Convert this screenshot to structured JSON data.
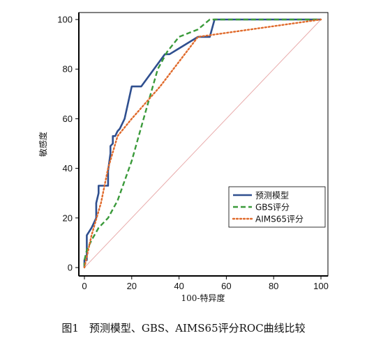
{
  "caption": "图1　预测模型、GBS、AIMS65评分ROC曲线比较",
  "chart_data": {
    "type": "line",
    "xlabel": "100-特异度",
    "ylabel": "敏感度",
    "xlim": [
      0,
      100
    ],
    "ylim": [
      0,
      100
    ],
    "xticks": [
      0,
      20,
      40,
      60,
      80,
      100
    ],
    "yticks": [
      0,
      20,
      40,
      60,
      80,
      100
    ],
    "grid": false,
    "legend_position": "bottom-right",
    "reference_line": {
      "x": [
        0,
        100
      ],
      "y": [
        0,
        100
      ],
      "color": "#e8aaaa"
    },
    "series": [
      {
        "name": "预测模型",
        "color": "#2f4f8f",
        "style": "solid",
        "x": [
          0,
          0,
          1,
          1,
          3,
          5,
          5,
          6,
          6,
          10,
          10,
          11,
          11,
          12,
          12,
          13,
          14,
          15,
          17,
          20,
          20,
          24,
          34,
          35,
          36,
          48,
          53,
          55,
          100
        ],
        "y": [
          0,
          3,
          3,
          13,
          16,
          20,
          26,
          30,
          33,
          33,
          39,
          46,
          49,
          50,
          53,
          53,
          55,
          56,
          60,
          73,
          73,
          73,
          86,
          86,
          86,
          93,
          93,
          100,
          100
        ]
      },
      {
        "name": "GBS评分",
        "color": "#3a9a3a",
        "style": "dashed",
        "x": [
          0,
          0,
          1,
          3,
          6,
          10,
          14,
          20,
          25,
          31,
          35,
          40,
          48,
          53,
          100
        ],
        "y": [
          0,
          3,
          7,
          11,
          16,
          20,
          27,
          43,
          60,
          80,
          87,
          93,
          96,
          100,
          100
        ]
      },
      {
        "name": "AIMS65评分",
        "color": "#e06a2b",
        "style": "dotted",
        "x": [
          0,
          3,
          7,
          10,
          14,
          20,
          32,
          40,
          48,
          100
        ],
        "y": [
          0,
          13,
          26,
          40,
          53,
          60,
          73,
          83,
          93,
          100
        ]
      }
    ]
  }
}
